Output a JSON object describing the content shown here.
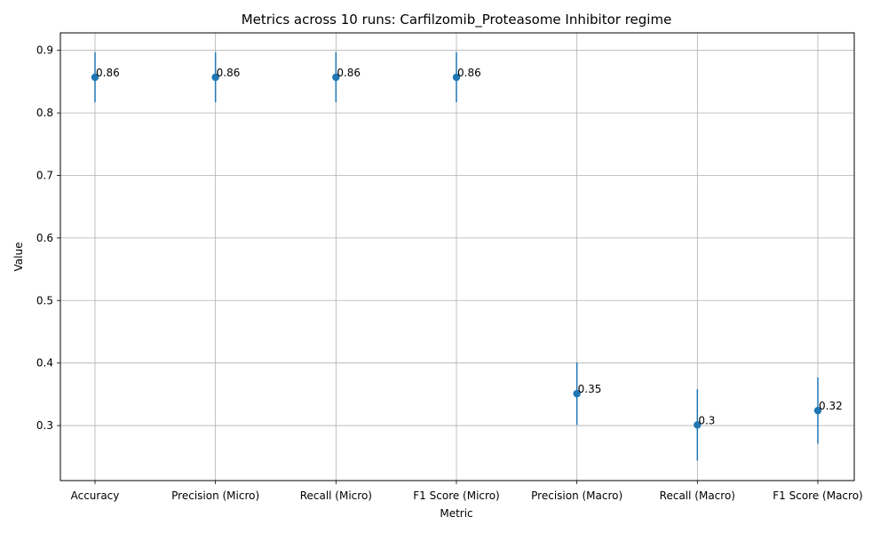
{
  "chart_data": {
    "type": "scatter",
    "title": "Metrics across 10 runs: Carfilzomib_Proteasome Inhibitor regime",
    "xlabel": "Metric",
    "ylabel": "Value",
    "categories": [
      "Accuracy",
      "Precision (Micro)",
      "Recall (Micro)",
      "F1 Score (Micro)",
      "Precision (Macro)",
      "Recall (Macro)",
      "F1 Score (Macro)"
    ],
    "values": [
      0.857,
      0.857,
      0.857,
      0.857,
      0.351,
      0.301,
      0.324
    ],
    "error": [
      0.04,
      0.04,
      0.04,
      0.04,
      0.05,
      0.057,
      0.053
    ],
    "point_labels": [
      "0.86",
      "0.86",
      "0.86",
      "0.86",
      "0.35",
      "0.3",
      "0.32"
    ],
    "ylim": [
      0.212,
      0.928
    ],
    "yticks": [
      0.3,
      0.4,
      0.5,
      0.6,
      0.7,
      0.8,
      0.9
    ],
    "ytick_labels": [
      "0.3",
      "0.4",
      "0.5",
      "0.6",
      "0.7",
      "0.8",
      "0.9"
    ],
    "grid": true,
    "color": "#1f77b4"
  }
}
